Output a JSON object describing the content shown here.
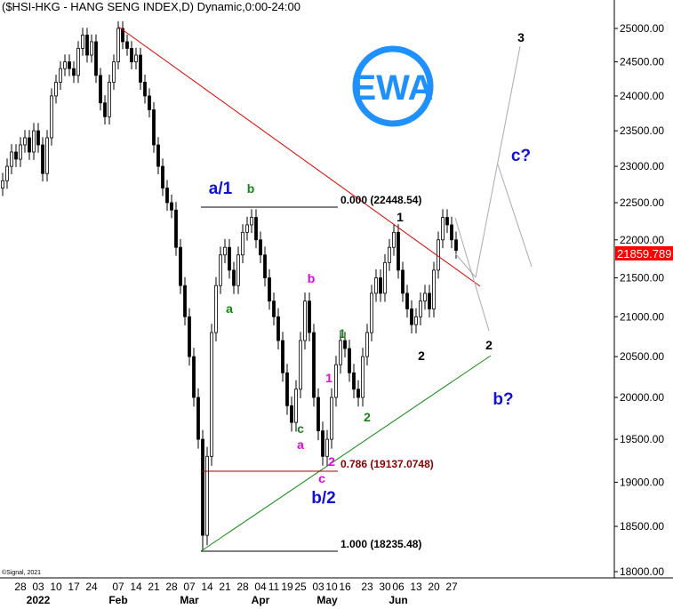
{
  "title": "($HSI-HKG - HANG SENG INDEX,D) Dynamic,0:00-24:00",
  "copyright": "©Signal, 2021",
  "logo_text": "EWA",
  "colors": {
    "logo": "#1e90ff",
    "trend_red": "#e00000",
    "trend_green": "#118811",
    "last_price_bg": "#ff0000",
    "wave_blue": "#1010dd",
    "wave_green": "#118811",
    "wave_magenta": "#ee00ee",
    "fib_dark_red": "#8b0000"
  },
  "chart_data": {
    "type": "candlestick",
    "title": "$HSI-HKG - HANG SENG INDEX, Daily",
    "ylim": [
      18000,
      25200
    ],
    "yticks": [
      "25000.00",
      "24500.00",
      "24000.00",
      "23500.00",
      "23000.00",
      "22500.00",
      "22000.00",
      "21500.00",
      "21000.00",
      "20500.00",
      "20000.00",
      "19500.00",
      "19000.00",
      "18500.00",
      "18000.00"
    ],
    "ytick_values": [
      25000,
      24500,
      24000,
      23500,
      23000,
      22500,
      22000,
      21500,
      21000,
      20500,
      20000,
      19500,
      19000,
      18500,
      18000
    ],
    "xticks": [
      "28",
      "03",
      "10",
      "17",
      "24",
      "07",
      "14",
      "21",
      "28",
      "07",
      "14",
      "21",
      "28",
      "04",
      "11",
      "19",
      "25",
      "03",
      "10",
      "16",
      "23",
      "30",
      "06",
      "13",
      "20",
      "27"
    ],
    "xtick_index": [
      4,
      8,
      12,
      16,
      20,
      26,
      30,
      34,
      38,
      42,
      46,
      50,
      54,
      58,
      61,
      64,
      67,
      71,
      74,
      77,
      82,
      86,
      89,
      93,
      97,
      101
    ],
    "month_labels": [
      {
        "label": "2022",
        "index": 8
      },
      {
        "label": "Feb",
        "index": 26
      },
      {
        "label": "Mar",
        "index": 42
      },
      {
        "label": "Apr",
        "index": 58
      },
      {
        "label": "May",
        "index": 73
      },
      {
        "label": "Jun",
        "index": 89
      }
    ],
    "last_price": "21859.789",
    "close": [
      22800,
      23000,
      23200,
      23100,
      23300,
      23400,
      23200,
      23500,
      23300,
      22900,
      23400,
      24000,
      24200,
      24400,
      24500,
      24400,
      24300,
      24700,
      24900,
      24600,
      24800,
      24300,
      23900,
      23700,
      24200,
      24500,
      25000,
      24800,
      24700,
      24500,
      24600,
      24200,
      24000,
      23800,
      23300,
      23000,
      22700,
      22500,
      22400,
      21900,
      21400,
      21000,
      20500,
      20000,
      19500,
      18400,
      19300,
      20800,
      21400,
      21800,
      21900,
      21600,
      21400,
      21800,
      22100,
      22200,
      22300,
      22000,
      21800,
      21500,
      21200,
      21000,
      20700,
      20300,
      19900,
      19700,
      20100,
      20700,
      21200,
      20800,
      20000,
      19600,
      19300,
      19500,
      20000,
      20400,
      20700,
      20600,
      20300,
      20100,
      20000,
      20500,
      20800,
      21300,
      21500,
      21300,
      21700,
      21900,
      22100,
      21600,
      21300,
      21100,
      20900,
      21000,
      21200,
      21300,
      21100,
      21600,
      22000,
      22300,
      22200,
      22000,
      21860
    ],
    "fib_levels": [
      {
        "label": "0.000 (22448.54)",
        "value": 22448.54
      },
      {
        "label": "0.786 (19137.0748)",
        "value": 19137.0748
      },
      {
        "label": "1.000 (18235.48)",
        "value": 18235.48
      }
    ],
    "wave_labels": [
      {
        "text": "a/1",
        "color": "wave_blue"
      },
      {
        "text": "b",
        "color": "wave_green"
      },
      {
        "text": "a",
        "color": "wave_green"
      },
      {
        "text": "b",
        "color": "wave_magenta"
      },
      {
        "text": "1",
        "color": "wave_green"
      },
      {
        "text": "1",
        "color": "wave_magenta"
      },
      {
        "text": "2",
        "color": "wave_green"
      },
      {
        "text": "c",
        "color": "wave_green"
      },
      {
        "text": "a",
        "color": "wave_magenta"
      },
      {
        "text": "2",
        "color": "wave_magenta"
      },
      {
        "text": "c",
        "color": "wave_magenta"
      },
      {
        "text": "b/2",
        "color": "wave_blue"
      },
      {
        "text": "1",
        "color": "black"
      },
      {
        "text": "2",
        "color": "black"
      },
      {
        "text": "2",
        "color": "black"
      },
      {
        "text": "3",
        "color": "black"
      },
      {
        "text": "c?",
        "color": "wave_blue"
      },
      {
        "text": "b?",
        "color": "wave_blue"
      }
    ]
  }
}
